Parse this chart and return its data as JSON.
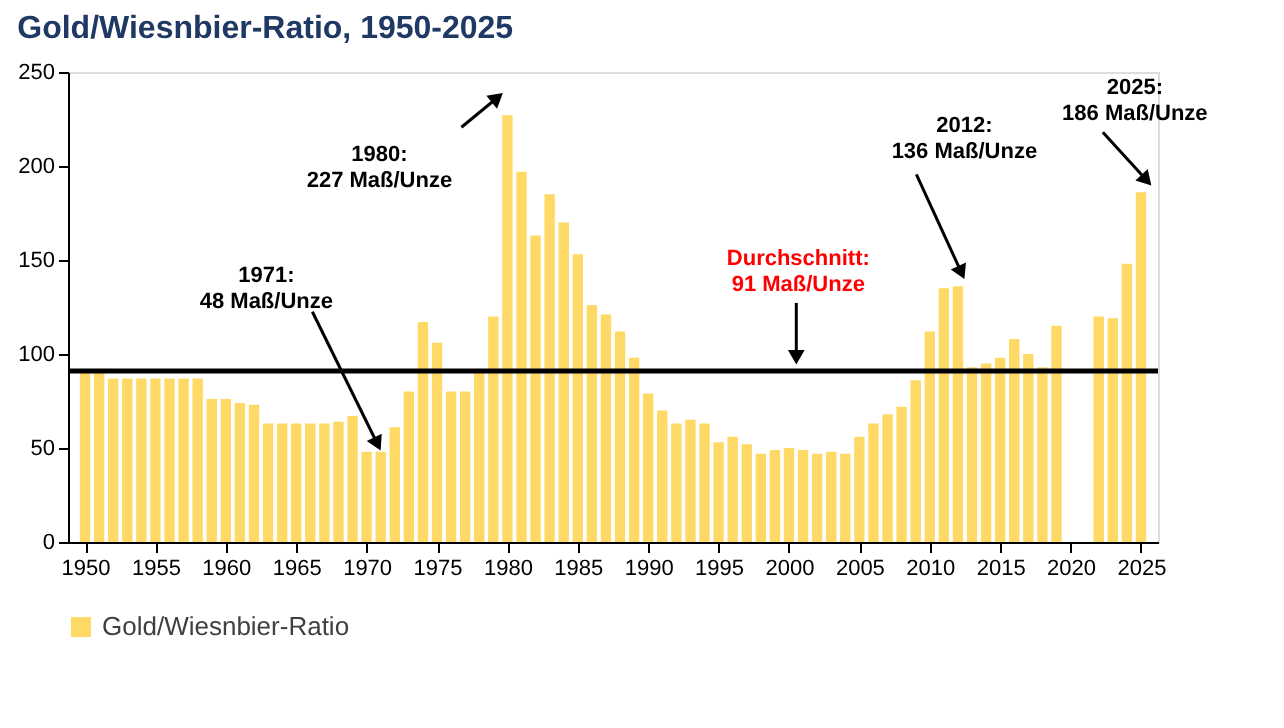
{
  "chart_data": {
    "type": "bar",
    "title": "Gold/Wiesnbier-Ratio, 1950-2025",
    "x": [
      1950,
      1951,
      1952,
      1953,
      1954,
      1955,
      1956,
      1957,
      1958,
      1959,
      1960,
      1961,
      1962,
      1963,
      1964,
      1965,
      1966,
      1967,
      1968,
      1969,
      1970,
      1971,
      1972,
      1973,
      1974,
      1975,
      1976,
      1977,
      1978,
      1979,
      1980,
      1981,
      1982,
      1983,
      1984,
      1985,
      1986,
      1987,
      1988,
      1989,
      1990,
      1991,
      1992,
      1993,
      1994,
      1995,
      1996,
      1997,
      1998,
      1999,
      2000,
      2001,
      2002,
      2003,
      2004,
      2005,
      2006,
      2007,
      2008,
      2009,
      2010,
      2011,
      2012,
      2013,
      2014,
      2015,
      2016,
      2017,
      2018,
      2019,
      2020,
      2021,
      2022,
      2023,
      2024,
      2025
    ],
    "series": [
      {
        "name": "Gold/Wiesnbier-Ratio",
        "color": "#ffd966",
        "values": [
          90,
          90,
          87,
          87,
          87,
          87,
          87,
          87,
          87,
          76,
          76,
          74,
          73,
          63,
          63,
          63,
          63,
          63,
          64,
          67,
          48,
          48,
          61,
          80,
          117,
          106,
          80,
          80,
          90,
          120,
          227,
          197,
          163,
          185,
          170,
          153,
          126,
          121,
          112,
          98,
          79,
          70,
          63,
          65,
          63,
          53,
          56,
          52,
          47,
          49,
          50,
          49,
          47,
          48,
          47,
          56,
          63,
          68,
          72,
          86,
          112,
          135,
          136,
          93,
          95,
          98,
          108,
          100,
          93,
          115,
          null,
          null,
          120,
          119,
          148,
          186
        ]
      }
    ],
    "xlim": [
      1949.5,
      2025.5
    ],
    "xticks": [
      1950,
      1955,
      1960,
      1965,
      1970,
      1975,
      1980,
      1985,
      1990,
      1995,
      2000,
      2005,
      2010,
      2015,
      2020,
      2025
    ],
    "ylim": [
      0,
      250
    ],
    "yticks": [
      0,
      50,
      100,
      150,
      200,
      250
    ],
    "ref_lines": [
      {
        "axis": "y",
        "value": 91,
        "label": "Durchschnitt:\n91 Maß/Unze",
        "color": "#000000"
      }
    ],
    "annotations": [
      {
        "text": "1971:\n48 Maß/Unze",
        "x": 1971,
        "y": 48
      },
      {
        "text": "1980:\n227 Maß/Unze",
        "x": 1980,
        "y": 227
      },
      {
        "text": "2012:\n136 Maß/Unze",
        "x": 2012,
        "y": 136
      },
      {
        "text": "2025:\n186 Maß/Unze",
        "x": 2025,
        "y": 186
      }
    ],
    "grid": false,
    "legend": "bottom"
  }
}
